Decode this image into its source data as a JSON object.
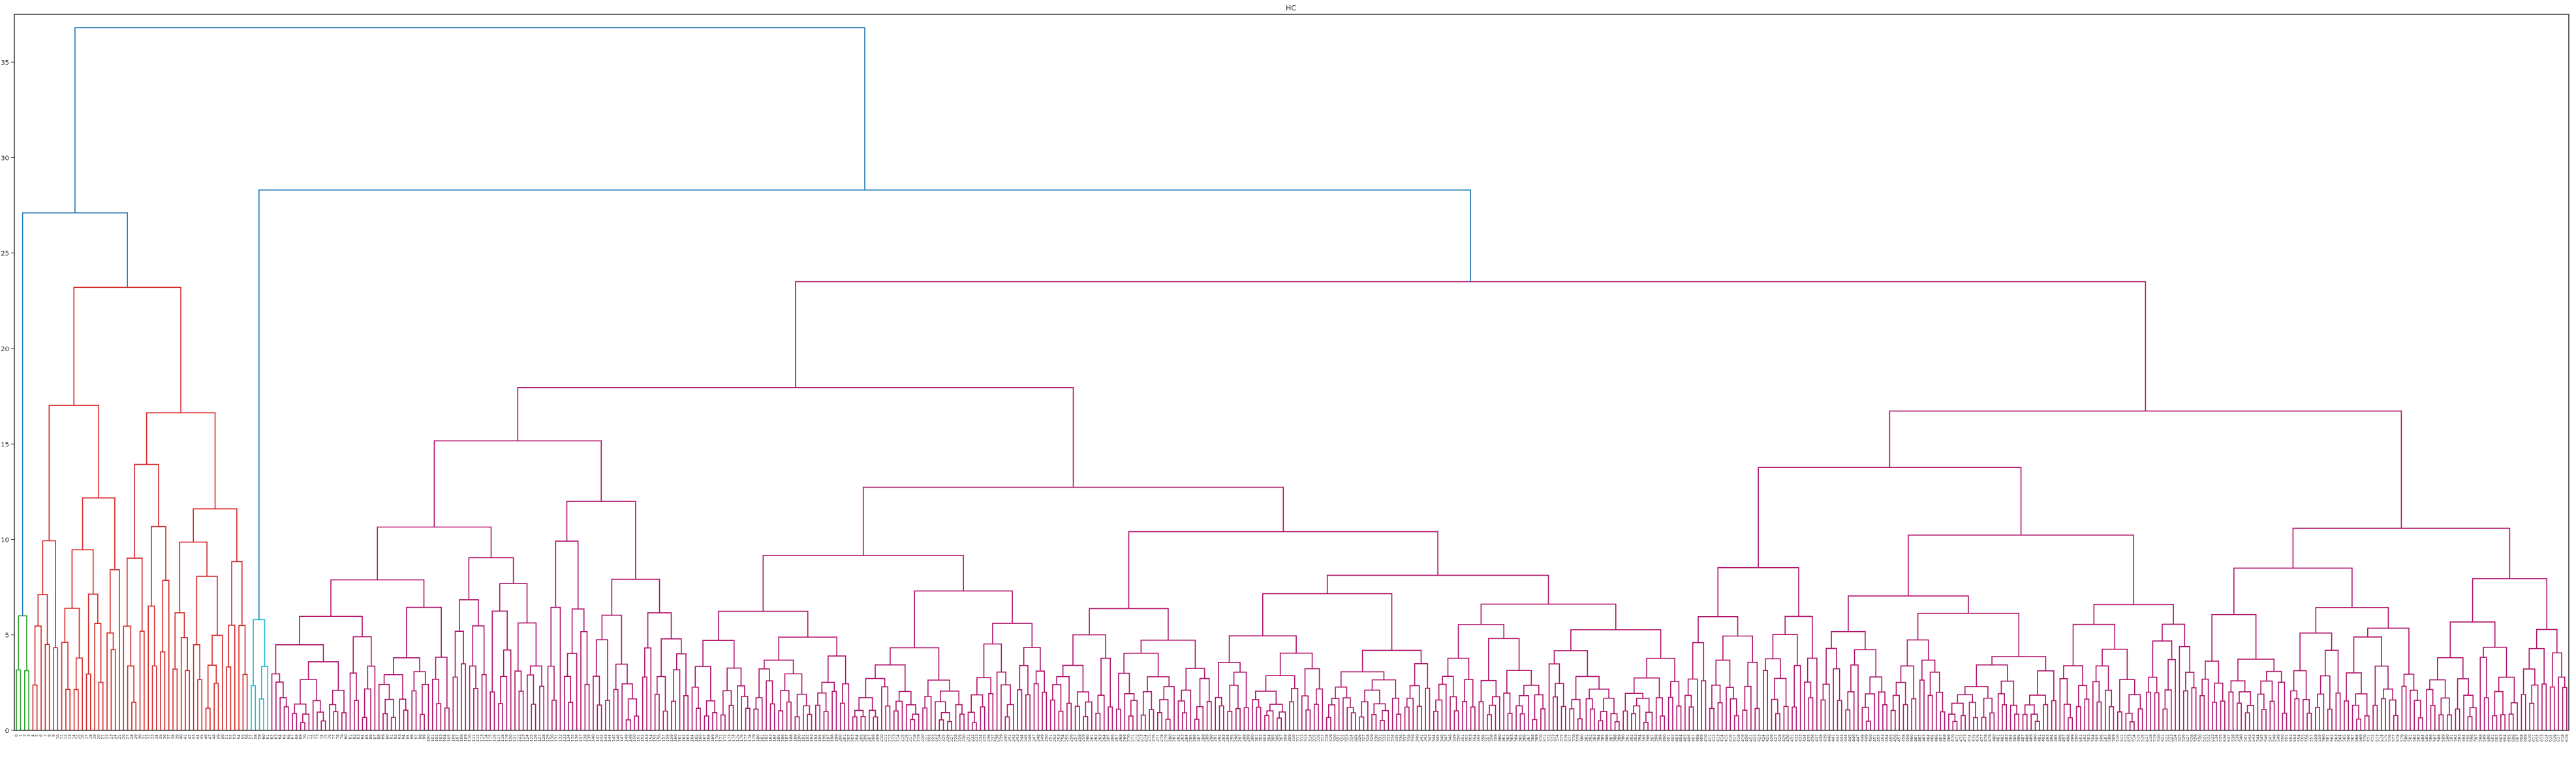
{
  "chart_data": {
    "type": "dendrogram",
    "title": "HC",
    "xlabel": "",
    "ylabel": "",
    "ylim": [
      0,
      37.5
    ],
    "yticks": [
      0,
      5,
      10,
      15,
      20,
      25,
      30,
      35
    ],
    "grid": false,
    "leaf_count": 620,
    "cluster_colors": {
      "green": "#2ca02c",
      "red": "#d62728",
      "light_blue": "#17becf",
      "magenta": "#b0136b",
      "above_threshold": "#1f77b4"
    },
    "top_merges": [
      {
        "height": 36.8,
        "joins": [
          "left group",
          "right group"
        ]
      },
      {
        "height": 28.3,
        "joins": [
          "light_blue cluster",
          "magenta cluster"
        ]
      },
      {
        "height": 27.1,
        "joins": [
          "green cluster",
          "red cluster"
        ]
      },
      {
        "height": 23.5,
        "joins": [
          "magenta subgroup A",
          "magenta subgroup B"
        ]
      },
      {
        "height": 23.2,
        "joins": [
          "red subgroup A",
          "red subgroup B"
        ]
      },
      {
        "height": 21.2,
        "joins": [
          "magenta subgroup B1",
          "magenta subgroup B2"
        ]
      },
      {
        "height": 20.0,
        "joins": [
          "magenta subgroup A1",
          "magenta subgroup A2"
        ]
      },
      {
        "height": 18.8,
        "joins": [
          "magenta subgroup B2a",
          "magenta subgroup B2b"
        ]
      },
      {
        "height": 18.2,
        "joins": [
          "magenta subgroup B2b1",
          "magenta subgroup B2b2"
        ]
      }
    ],
    "clusters": [
      {
        "name": "green",
        "color": "#2ca02c",
        "leaves": 4,
        "merge_height": 6.0
      },
      {
        "name": "red",
        "color": "#d62728",
        "leaves": 53,
        "merge_height": 23.2
      },
      {
        "name": "light_blue",
        "color": "#17becf",
        "leaves": 5,
        "merge_height": 5.8
      },
      {
        "name": "magenta",
        "color": "#b0136b",
        "leaves": 558,
        "merge_height": 23.5
      }
    ]
  }
}
